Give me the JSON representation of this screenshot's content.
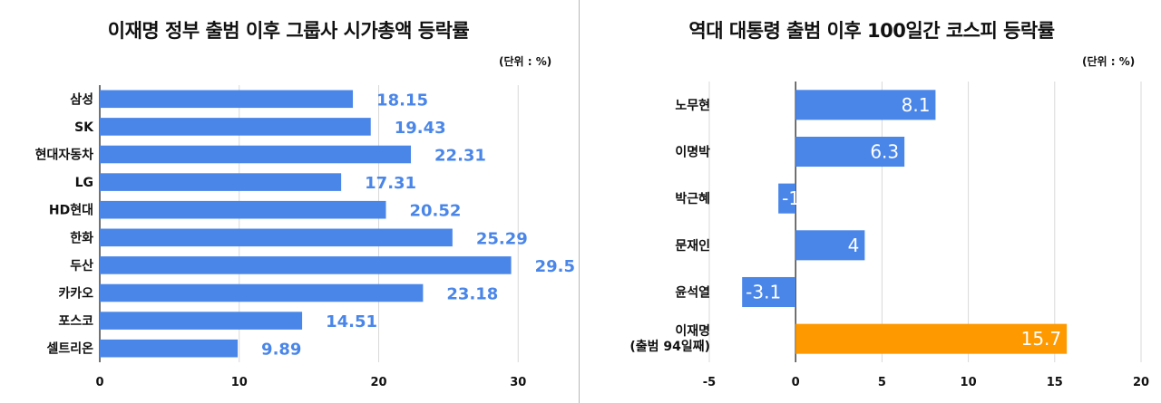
{
  "left": {
    "title": "이재명 정부 출범 이후 그룹사 시가총액 등락률",
    "unit": "(단위 : %)"
  },
  "right": {
    "title": "역대 대통령 출범 이후 100일간 코스피 등락률",
    "unit": "(단위 : %)"
  },
  "colors": {
    "bar": "#4a86e8",
    "highlight": "#ff9900",
    "grid": "#d9d9d9",
    "axis": "#444444",
    "divider": "#b8b8b8"
  },
  "chart_data": [
    {
      "type": "bar",
      "orientation": "horizontal",
      "title": "이재명 정부 출범 이후 그룹사 시가총액 등락률",
      "unit": "(단위 : %)",
      "categories": [
        "삼성",
        "SK",
        "현대자동차",
        "LG",
        "HD현대",
        "한화",
        "두산",
        "카카오",
        "포스코",
        "셀트리온"
      ],
      "values": [
        18.15,
        19.43,
        22.31,
        17.31,
        20.52,
        25.29,
        29.5,
        23.18,
        14.51,
        9.89
      ],
      "value_labels": [
        "18.15",
        "19.43",
        "22.31",
        "17.31",
        "20.52",
        "25.29",
        "29.5",
        "23.18",
        "14.51",
        "9.89"
      ],
      "xlim": [
        0,
        32
      ],
      "xticks": [
        0,
        10,
        20,
        30
      ],
      "xtick_labels": [
        "0",
        "10",
        "20",
        "30"
      ],
      "grid": true,
      "label_position": "outside"
    },
    {
      "type": "bar",
      "orientation": "horizontal",
      "title": "역대 대통령 출범 이후 100일간 코스피 등락률",
      "unit": "(단위 : %)",
      "categories": [
        "노무현",
        "이명박",
        "박근혜",
        "문재인",
        "윤석열",
        "이재명 (출범 94일째)"
      ],
      "category_lines": [
        [
          "노무현"
        ],
        [
          "이명박"
        ],
        [
          "박근혜"
        ],
        [
          "문재인"
        ],
        [
          "윤석열"
        ],
        [
          "이재명",
          "(출범 94일째)"
        ]
      ],
      "values": [
        8.1,
        6.3,
        -1,
        4,
        -3.1,
        15.7
      ],
      "value_labels": [
        "8.1",
        "6.3",
        "-1",
        "4",
        "-3.1",
        "15.7"
      ],
      "highlight_index": 5,
      "xlim": [
        -5,
        20
      ],
      "xticks": [
        -5,
        0,
        5,
        10,
        15,
        20
      ],
      "xtick_labels": [
        "-5",
        "0",
        "5",
        "10",
        "15",
        "20"
      ],
      "grid": true,
      "label_position": "inside-end"
    }
  ]
}
